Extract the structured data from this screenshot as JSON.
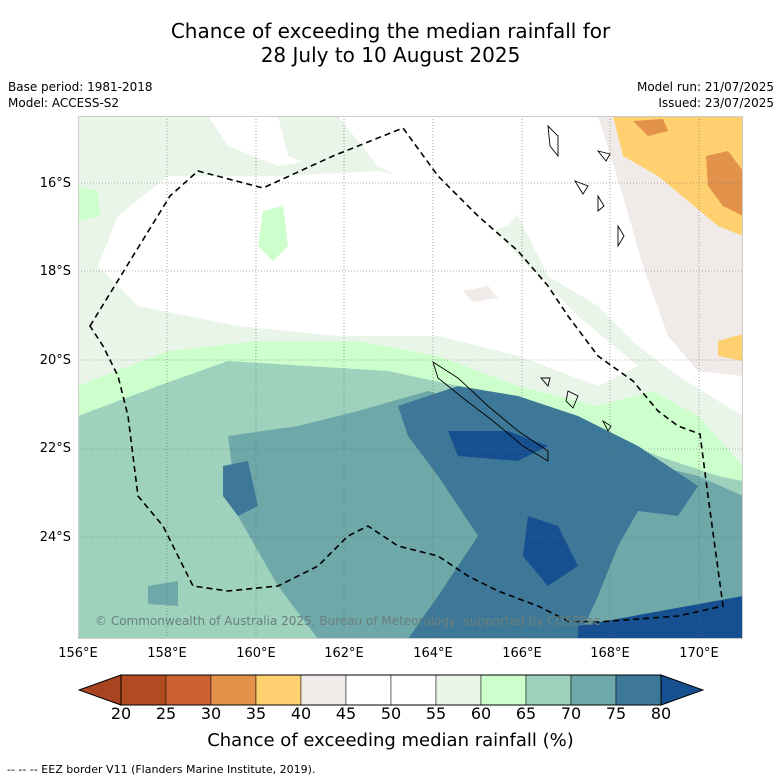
{
  "title_line1": "Chance of exceeding the median rainfall for",
  "title_line2": "28 July to 10 August 2025",
  "meta_left": [
    "Base period: 1981-2018",
    "Model: ACCESS-S2"
  ],
  "meta_right": [
    "Model run: 21/07/2025",
    "Issued: 23/07/2025"
  ],
  "lat_labels": [
    "16°S",
    "18°S",
    "20°S",
    "22°S",
    "24°S"
  ],
  "lon_labels": [
    "156°E",
    "158°E",
    "160°E",
    "162°E",
    "164°E",
    "166°E",
    "168°E",
    "170°E"
  ],
  "colorbar": {
    "ticks": [
      "20",
      "25",
      "30",
      "35",
      "40",
      "45",
      "50",
      "55",
      "60",
      "65",
      "70",
      "75",
      "80"
    ],
    "colors": [
      "#a8441f",
      "#b24a22",
      "#cc6232",
      "#e2924a",
      "#ffd070",
      "#f0ebe8",
      "#ffffff",
      "#ffffff",
      "#eaf5ea",
      "#ccffcc",
      "#9ed2bd",
      "#6ea8a8",
      "#3e7898",
      "#165090"
    ],
    "label": "Chance of exceeding median rainfall (%)"
  },
  "copyright": "© Commonwealth of Australia 2025, Bureau of Meteorology, supported by COSPPac",
  "footnote": "-- -- -- EEZ border V11 (Flanders Marine Institute, 2019)."
}
